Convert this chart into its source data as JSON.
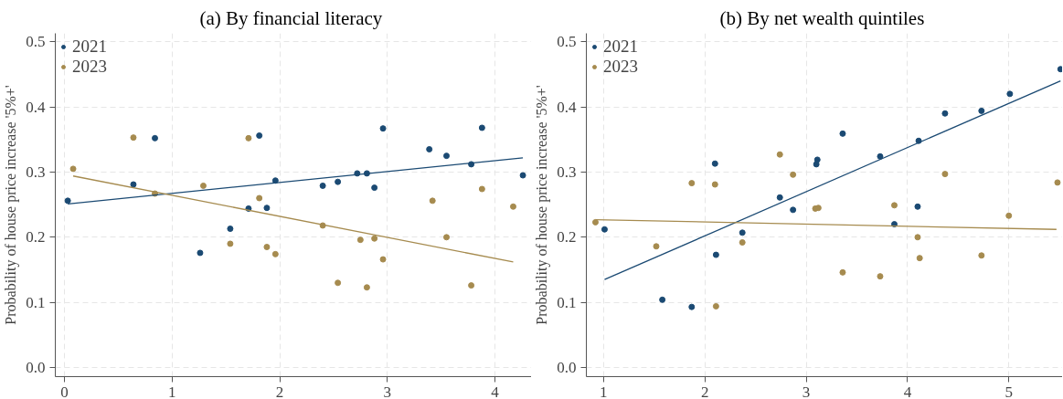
{
  "chart_data": [
    {
      "type": "scatter",
      "title": "(a)  By financial literacy",
      "ylabel": "Probability of house price increase '5%+'",
      "xlim": [
        -0.086,
        4.34
      ],
      "ylim": [
        -0.014,
        0.513
      ],
      "xticks": [
        0,
        1,
        2,
        3,
        4
      ],
      "yticks": [
        {
          "value": 0,
          "label": "0.0"
        },
        0.1,
        0.2,
        0.3,
        0.4,
        0.5
      ],
      "grid": true,
      "legend": "top left",
      "marker": "circle",
      "series": [
        {
          "name": "2021",
          "color": "#1b4a73",
          "x": [
            0.03,
            0.64,
            0.84,
            1.26,
            1.54,
            1.71,
            1.81,
            1.88,
            1.96,
            2.4,
            2.54,
            2.72,
            2.81,
            2.88,
            2.96,
            3.39,
            3.55,
            3.78,
            3.88,
            4.26
          ],
          "values": [
            0.256,
            0.281,
            0.352,
            0.176,
            0.213,
            0.244,
            0.356,
            0.245,
            0.287,
            0.279,
            0.285,
            0.298,
            0.298,
            0.276,
            0.367,
            0.335,
            0.325,
            0.312,
            0.368,
            0.295
          ]
        },
        {
          "name": "2023",
          "color": "#a68b4f",
          "x": [
            0.08,
            0.64,
            0.84,
            1.29,
            1.54,
            1.71,
            1.81,
            1.88,
            1.96,
            2.4,
            2.54,
            2.75,
            2.81,
            2.88,
            2.96,
            3.42,
            3.55,
            3.78,
            3.88,
            4.17
          ],
          "values": [
            0.305,
            0.353,
            0.267,
            0.279,
            0.19,
            0.352,
            0.26,
            0.185,
            0.174,
            0.218,
            0.13,
            0.196,
            0.123,
            0.198,
            0.166,
            0.256,
            0.2,
            0.126,
            0.274,
            0.247
          ]
        },
        {
          "type": "line",
          "marker": "none",
          "color": "#1b4a73",
          "x": [
            0.03,
            4.26
          ],
          "values": [
            0.251,
            0.322
          ]
        },
        {
          "type": "line",
          "marker": "none",
          "color": "#a68b4f",
          "x": [
            0.08,
            4.17
          ],
          "values": [
            0.294,
            0.162
          ]
        }
      ]
    },
    {
      "type": "scatter",
      "title": "(b)  By net wealth quintiles",
      "ylabel": "Probability of house price increase '5%+'",
      "xlim": [
        0.83,
        5.53
      ],
      "ylim": [
        -0.014,
        0.513
      ],
      "xticks": [
        1,
        2,
        3,
        4,
        5
      ],
      "yticks": [
        {
          "value": 0,
          "label": "0.0"
        },
        0.1,
        0.2,
        0.3,
        0.4,
        0.5
      ],
      "grid": true,
      "legend": "top left",
      "marker": "circle",
      "series": [
        {
          "name": "2021",
          "color": "#1b4a73",
          "x": [
            1.01,
            1.58,
            1.87,
            2.1,
            2.11,
            2.37,
            2.74,
            2.87,
            3.1,
            3.11,
            3.36,
            3.73,
            3.87,
            4.1,
            4.11,
            4.37,
            4.73,
            5.01,
            5.51
          ],
          "values": [
            0.212,
            0.104,
            0.093,
            0.313,
            0.173,
            0.207,
            0.261,
            0.242,
            0.312,
            0.319,
            0.359,
            0.324,
            0.22,
            0.247,
            0.348,
            0.39,
            0.394,
            0.42,
            0.458
          ]
        },
        {
          "name": "2023",
          "color": "#a68b4f",
          "x": [
            0.92,
            1.52,
            1.87,
            2.1,
            2.11,
            2.37,
            2.74,
            2.87,
            3.09,
            3.12,
            3.36,
            3.73,
            3.87,
            4.1,
            4.12,
            4.37,
            4.73,
            5.0,
            5.48
          ],
          "values": [
            0.223,
            0.186,
            0.283,
            0.281,
            0.094,
            0.192,
            0.327,
            0.296,
            0.244,
            0.245,
            0.146,
            0.14,
            0.249,
            0.2,
            0.168,
            0.297,
            0.172,
            0.233,
            0.284
          ]
        },
        {
          "type": "line",
          "marker": "none",
          "color": "#1b4a73",
          "x": [
            1.01,
            5.51
          ],
          "values": [
            0.135,
            0.44
          ]
        },
        {
          "type": "line",
          "marker": "none",
          "color": "#a68b4f",
          "x": [
            0.92,
            5.47
          ],
          "values": [
            0.227,
            0.212
          ]
        }
      ]
    }
  ]
}
